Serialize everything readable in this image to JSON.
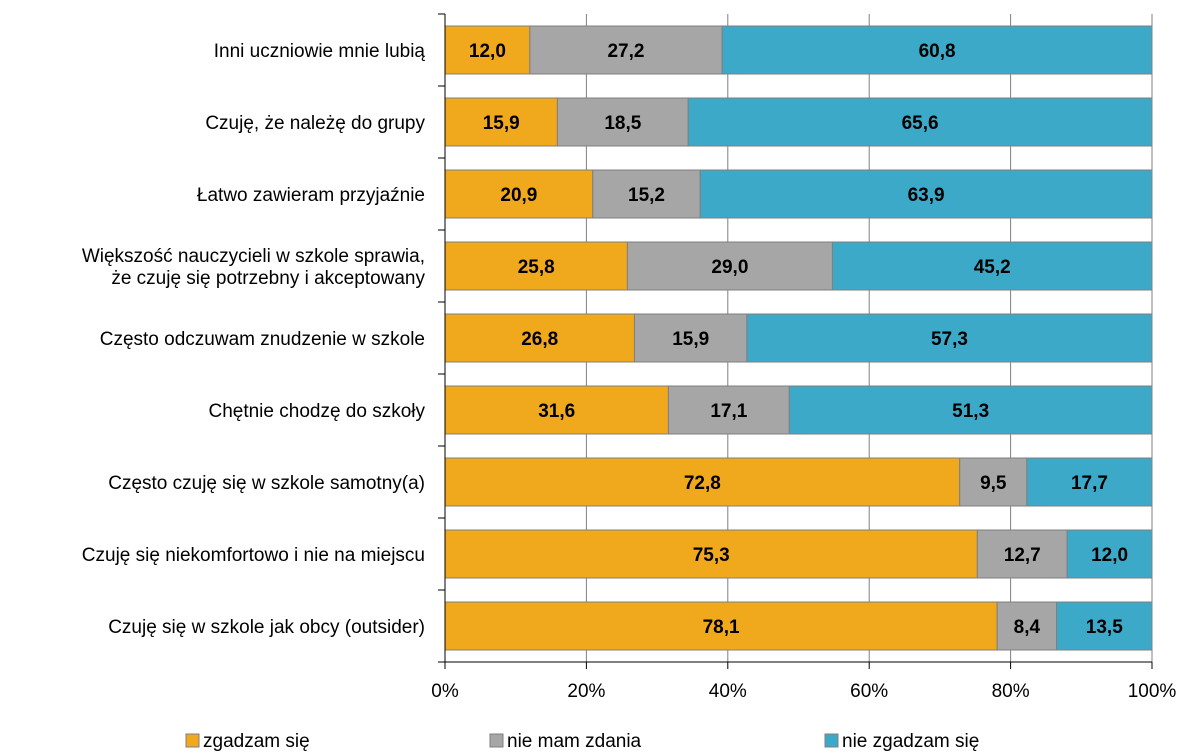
{
  "chart_data": {
    "type": "bar",
    "orientation": "horizontal",
    "stacked": "percent",
    "categories": [
      "Inni uczniowie mnie lubią",
      "Czuję, że należę do grupy",
      "Łatwo zawieram przyjaźnie",
      "Większość nauczycieli w szkole sprawia,|że czuję się potrzebny i akceptowany",
      "Często odczuwam znudzenie w szkole",
      "Chętnie chodzę do szkoły",
      "Często czuję się w szkole samotny(a)",
      "Czuję się niekomfortowo i nie na miejscu",
      "Czuję się w szkole jak obcy (outsider)"
    ],
    "series": [
      {
        "name": "zgadzam się",
        "color": "#f0a81c",
        "values": [
          12.0,
          15.9,
          20.9,
          25.8,
          26.8,
          31.6,
          72.8,
          75.3,
          78.1
        ],
        "labels": [
          "12,0",
          "15,9",
          "20,9",
          "25,8",
          "26,8",
          "31,6",
          "72,8",
          "75,3",
          "78,1"
        ]
      },
      {
        "name": "nie mam zdania",
        "color": "#a6a6a6",
        "values": [
          27.2,
          18.5,
          15.2,
          29.0,
          15.9,
          17.1,
          9.5,
          12.7,
          8.4
        ],
        "labels": [
          "27,2",
          "18,5",
          "15,2",
          "29,0",
          "15,9",
          "17,1",
          "9,5",
          "12,7",
          "8,4"
        ]
      },
      {
        "name": "nie zgadzam się",
        "color": "#3ca9c9",
        "values": [
          60.8,
          65.6,
          63.9,
          45.2,
          57.3,
          51.3,
          17.7,
          12.0,
          13.5
        ],
        "labels": [
          "60,8",
          "65,6",
          "63,9",
          "45,2",
          "57,3",
          "51,3",
          "17,7",
          "12,0",
          "13,5"
        ]
      }
    ],
    "x_ticks": [
      "0%",
      "20%",
      "40%",
      "60%",
      "80%",
      "100%"
    ],
    "xlim": [
      0,
      100
    ],
    "grid": true,
    "legend": "bottom"
  }
}
